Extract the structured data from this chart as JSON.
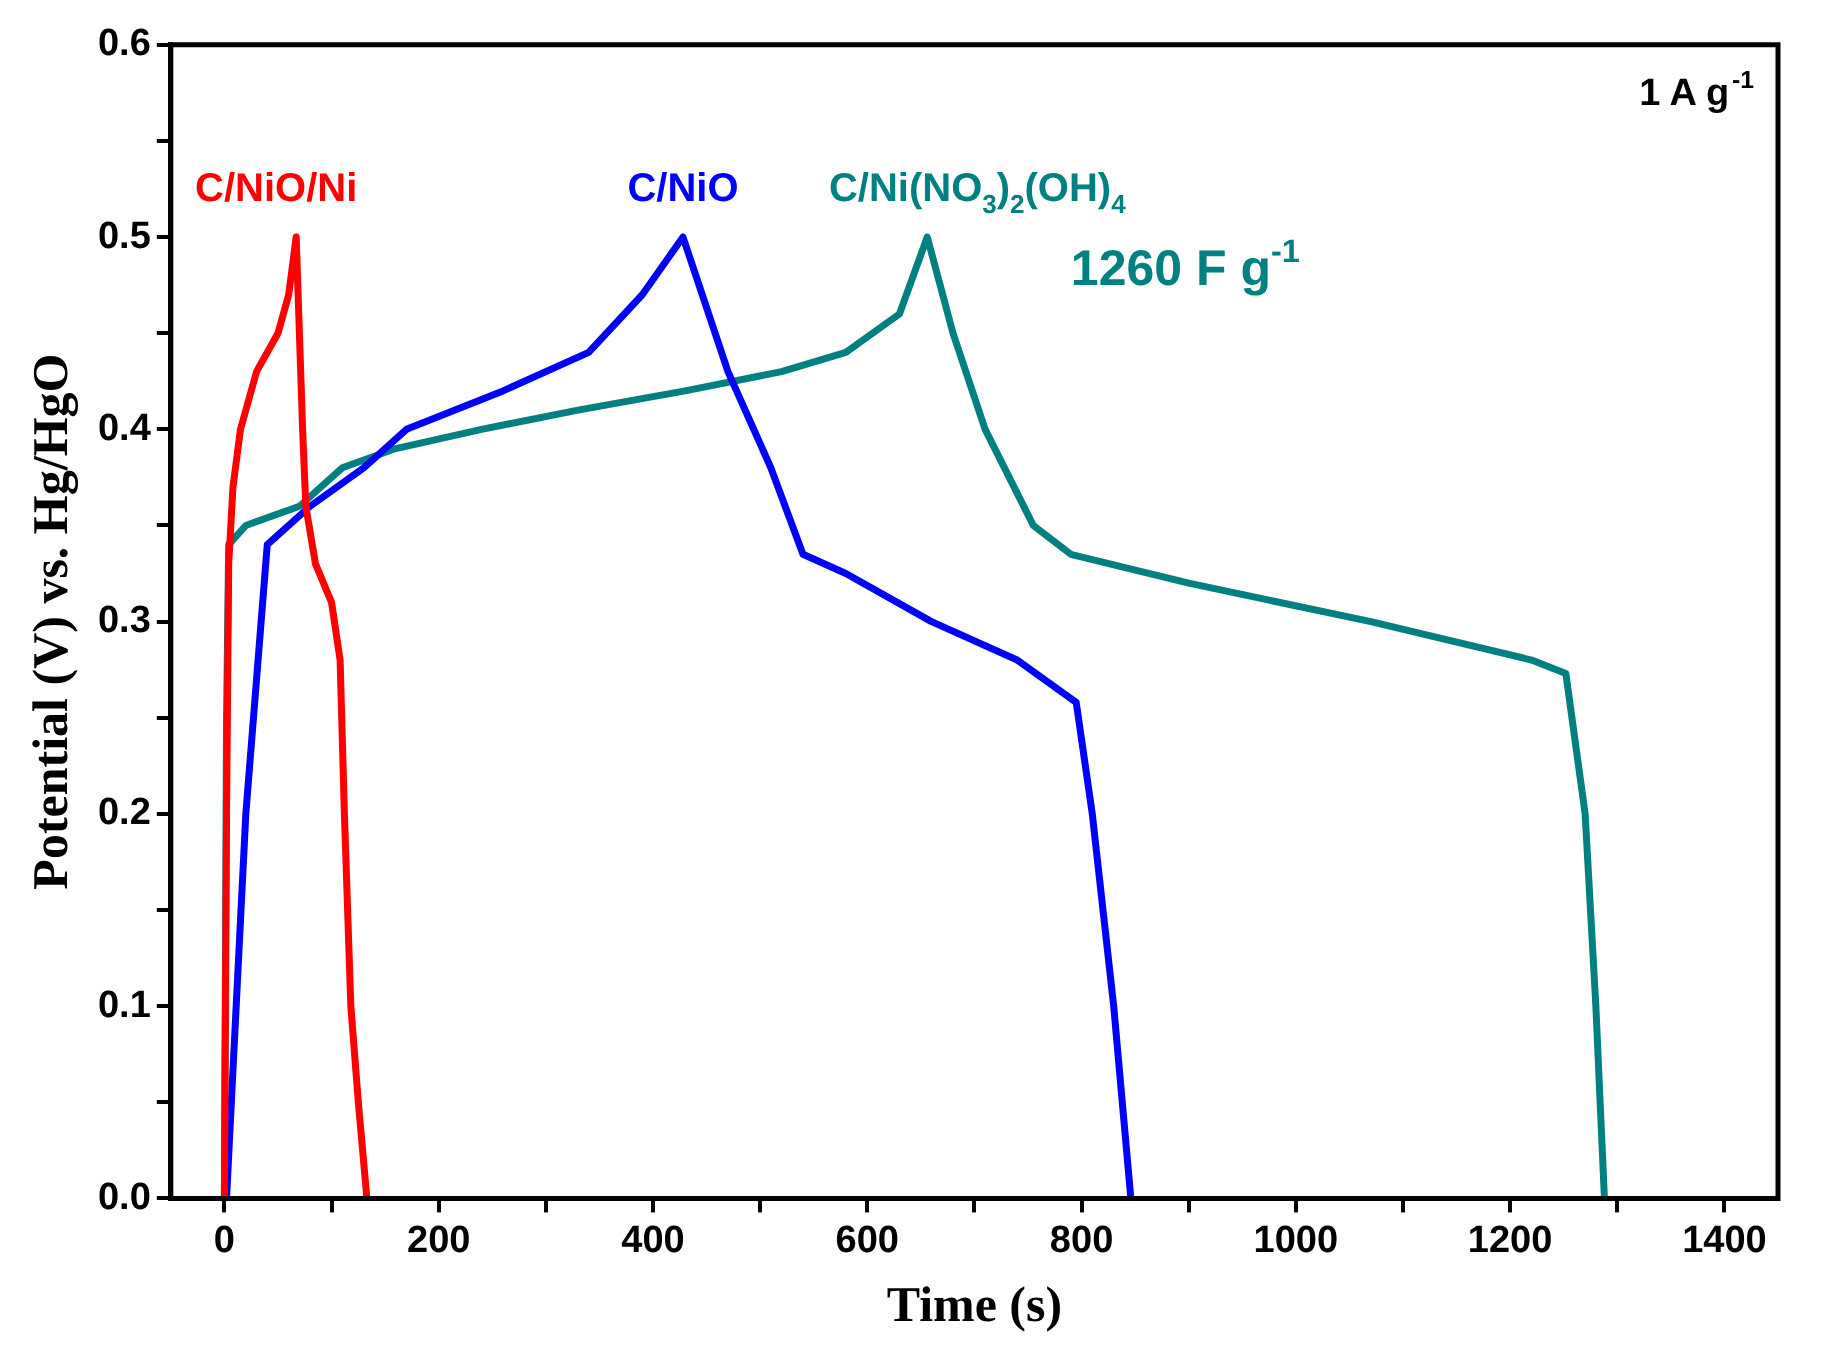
{
  "chart_data": {
    "type": "line",
    "xlabel": "Time (s)",
    "ylabel": "Potential (V) vs. Hg/HgO",
    "annotations": [
      "1 A g$^{-1}$",
      "1260 F g$^{-1}$"
    ],
    "xlim": [
      -50,
      1450
    ],
    "ylim": [
      0,
      0.6
    ],
    "xticks": [
      0,
      {
        "value": 100,
        "label": null
      },
      200,
      {
        "value": 300,
        "label": null
      },
      400,
      {
        "value": 500,
        "label": null
      },
      600,
      {
        "value": 700,
        "label": null
      },
      800,
      {
        "value": 900,
        "label": null
      },
      1000,
      {
        "value": 1100,
        "label": null
      },
      1200,
      {
        "value": 1300,
        "label": null
      },
      1400
    ],
    "yticks": [
      {
        "value": 0,
        "label": "0.0"
      },
      {
        "value": 0.05,
        "label": null
      },
      0.1,
      {
        "value": 0.15,
        "label": null
      },
      0.2,
      {
        "value": 0.25,
        "label": null
      },
      0.3,
      {
        "value": 0.35,
        "label": null
      },
      0.4,
      {
        "value": 0.45,
        "label": null
      },
      0.5,
      {
        "value": 0.55,
        "label": null
      },
      0.6
    ],
    "grid": false,
    "legend": false,
    "marker": "none",
    "line_style": "solid",
    "series": [
      {
        "name": "C/NiO/Ni",
        "color": "#ff0000",
        "x": [
          0,
          2,
          4,
          8,
          15,
          30,
          50,
          60,
          67,
          70,
          73,
          76,
          85,
          100,
          108,
          112,
          118,
          125,
          133
        ],
        "values": [
          0,
          0.2,
          0.33,
          0.37,
          0.4,
          0.43,
          0.45,
          0.47,
          0.5,
          0.45,
          0.4,
          0.36,
          0.33,
          0.31,
          0.28,
          0.2,
          0.1,
          0.05,
          0
        ]
      },
      {
        "name": "C/NiO",
        "color": "#0000ff",
        "x": [
          2,
          20,
          40,
          80,
          130,
          170,
          260,
          340,
          390,
          428,
          470,
          510,
          540,
          580,
          660,
          740,
          795,
          810,
          830,
          846
        ],
        "values": [
          0,
          0.2,
          0.34,
          0.36,
          0.38,
          0.4,
          0.42,
          0.44,
          0.47,
          0.5,
          0.43,
          0.38,
          0.335,
          0.325,
          0.3,
          0.28,
          0.258,
          0.2,
          0.1,
          0
        ]
      },
      {
        "name": "C/Ni(NO$_{3}$)$_{2}$(OH)$_{4}$",
        "color": "#008080",
        "x": [
          0,
          2,
          4,
          20,
          70,
          110,
          160,
          240,
          330,
          430,
          520,
          580,
          630,
          656,
          680,
          710,
          755,
          790,
          900,
          1070,
          1220,
          1252,
          1270,
          1280,
          1288
        ],
        "values": [
          0,
          0.25,
          0.34,
          0.35,
          0.36,
          0.38,
          0.39,
          0.4,
          0.41,
          0.42,
          0.43,
          0.44,
          0.46,
          0.5,
          0.45,
          0.4,
          0.35,
          0.335,
          0.32,
          0.3,
          0.28,
          0.273,
          0.2,
          0.1,
          0
        ]
      }
    ]
  }
}
